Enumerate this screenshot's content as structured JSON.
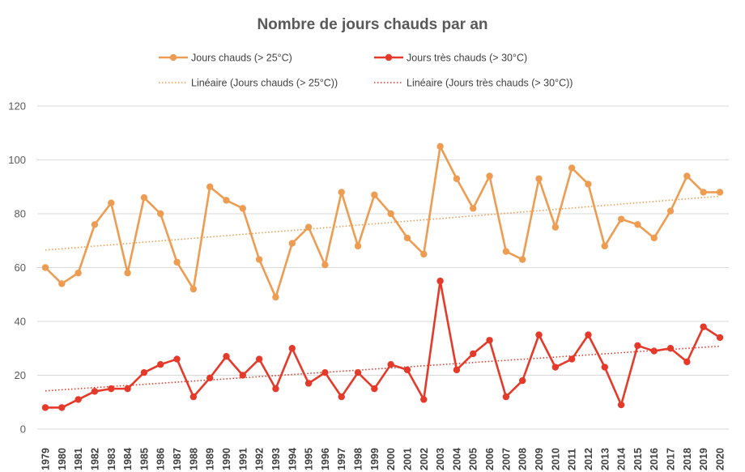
{
  "chart_data": {
    "type": "line",
    "title": "Nombre de jours chauds par an",
    "xlabel": "",
    "ylabel": "",
    "ylim": [
      0,
      120
    ],
    "yticks": [
      0,
      20,
      40,
      60,
      80,
      100,
      120
    ],
    "grid": true,
    "legend_position": "top",
    "categories": [
      "1979",
      "1980",
      "1981",
      "1982",
      "1983",
      "1984",
      "1985",
      "1986",
      "1987",
      "1988",
      "1989",
      "1990",
      "1991",
      "1992",
      "1993",
      "1994",
      "1995",
      "1996",
      "1997",
      "1998",
      "1999",
      "2000",
      "2001",
      "2002",
      "2003",
      "2004",
      "2005",
      "2006",
      "2007",
      "2008",
      "2009",
      "2010",
      "2011",
      "2012",
      "2013",
      "2014",
      "2015",
      "2016",
      "2017",
      "2018",
      "2019",
      "2020"
    ],
    "series": [
      {
        "name": "Jours chauds (> 25°C)",
        "color": "#ed9c52",
        "values": [
          60,
          54,
          58,
          76,
          84,
          58,
          86,
          80,
          62,
          52,
          90,
          85,
          82,
          63,
          49,
          69,
          75,
          61,
          88,
          68,
          87,
          80,
          71,
          65,
          105,
          93,
          82,
          94,
          66,
          63,
          93,
          75,
          97,
          91,
          68,
          78,
          76,
          71,
          81,
          94,
          88,
          88
        ],
        "trend_name": "Linéaire (Jours chauds (> 25°C))",
        "trend": [
          66.5,
          86.5
        ]
      },
      {
        "name": "Jours très chauds (> 30°C)",
        "color": "#e53a2a",
        "values": [
          8,
          8,
          11,
          14,
          15,
          15,
          21,
          24,
          26,
          12,
          19,
          27,
          20,
          26,
          15,
          30,
          17,
          21,
          12,
          21,
          15,
          24,
          22,
          11,
          55,
          22,
          28,
          33,
          12,
          18,
          35,
          23,
          26,
          35,
          23,
          9,
          31,
          29,
          30,
          25,
          38,
          34
        ],
        "trend_name": "Linéaire (Jours très chauds (> 30°C))",
        "trend": [
          14.2,
          30.8
        ]
      }
    ]
  }
}
